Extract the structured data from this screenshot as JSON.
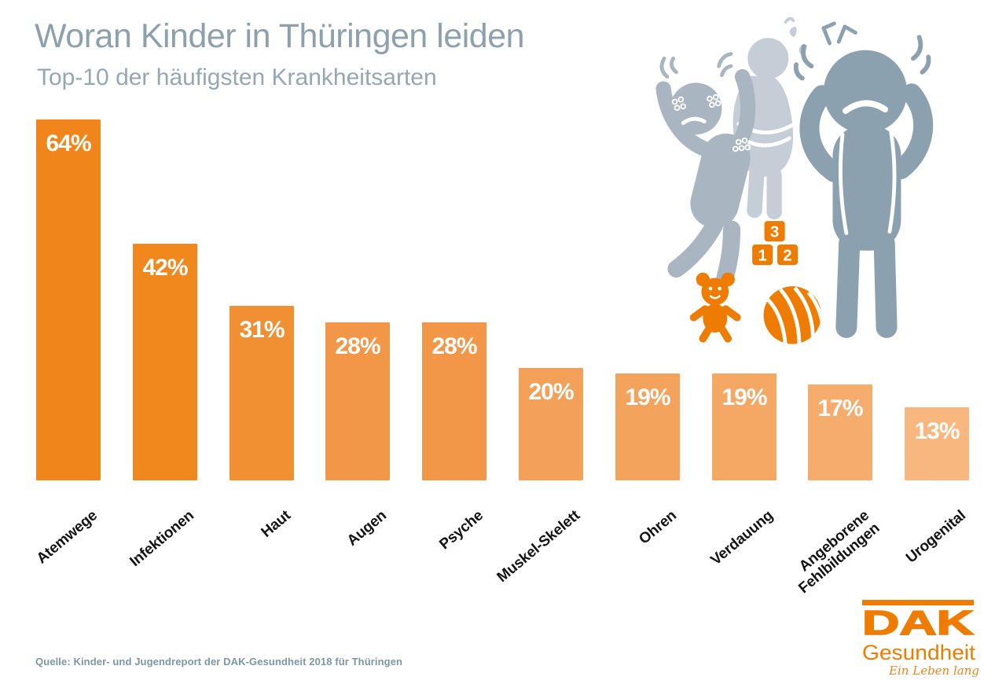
{
  "title": "Woran Kinder in Thüringen leiden",
  "subtitle": "Top-10 der häufigsten Krankheitsarten",
  "source": "Quelle: Kinder- und Jugendreport der DAK-Gesundheit 2018 für Thüringen",
  "chart_data": {
    "type": "bar",
    "categories": [
      "Atemwege",
      "Infektionen",
      "Haut",
      "Augen",
      "Psyche",
      "Muskel-Skelett",
      "Ohren",
      "Verdauung",
      "Angeborene Fehlbildungen",
      "Urogenital"
    ],
    "display_labels": [
      "Atemwege",
      "Infektionen",
      "Haut",
      "Augen",
      "Psyche",
      "Muskel-Skelett",
      "Ohren",
      "Verdauung",
      "Angeborene\nFehlbildungen",
      "Urogenital"
    ],
    "values": [
      64,
      42,
      31,
      28,
      28,
      20,
      19,
      19,
      17,
      13
    ],
    "value_labels": [
      "64%",
      "42%",
      "31%",
      "28%",
      "28%",
      "20%",
      "19%",
      "19%",
      "17%",
      "13%"
    ],
    "bar_colors": [
      "#f0861b",
      "#f0881e",
      "#f18f33",
      "#f29747",
      "#f29747",
      "#f3a058",
      "#f4a35d",
      "#f5a864",
      "#f5ac6c",
      "#f7b77e"
    ],
    "title": "Woran Kinder in Thüringen leiden",
    "subtitle": "Top-10 der häufigsten Krankheitsarten",
    "xlabel": "",
    "ylabel": "",
    "ylim": [
      0,
      70
    ],
    "grid": false,
    "legend": false,
    "value_label_position": "inside-top",
    "unit": "%"
  },
  "colors": {
    "accent_orange": "#ee7c00",
    "title_gray_blue": "#8da0ad",
    "source_gray_blue": "#7e95a5",
    "figure_dark": "#8ca1b0",
    "figure_medium": "#a9b6c1",
    "figure_light": "#c5ced6"
  },
  "illustration": {
    "figures": [
      "child-with-rash",
      "child-with-stomach-ache",
      "child-covering-ears"
    ],
    "toys": [
      "teddy-bear",
      "number-blocks",
      "striped-ball"
    ],
    "blocks": [
      "1",
      "2",
      "3"
    ]
  },
  "logo": {
    "brand": "DAK",
    "sub": "Gesundheit",
    "tagline": "Ein Leben lang"
  }
}
